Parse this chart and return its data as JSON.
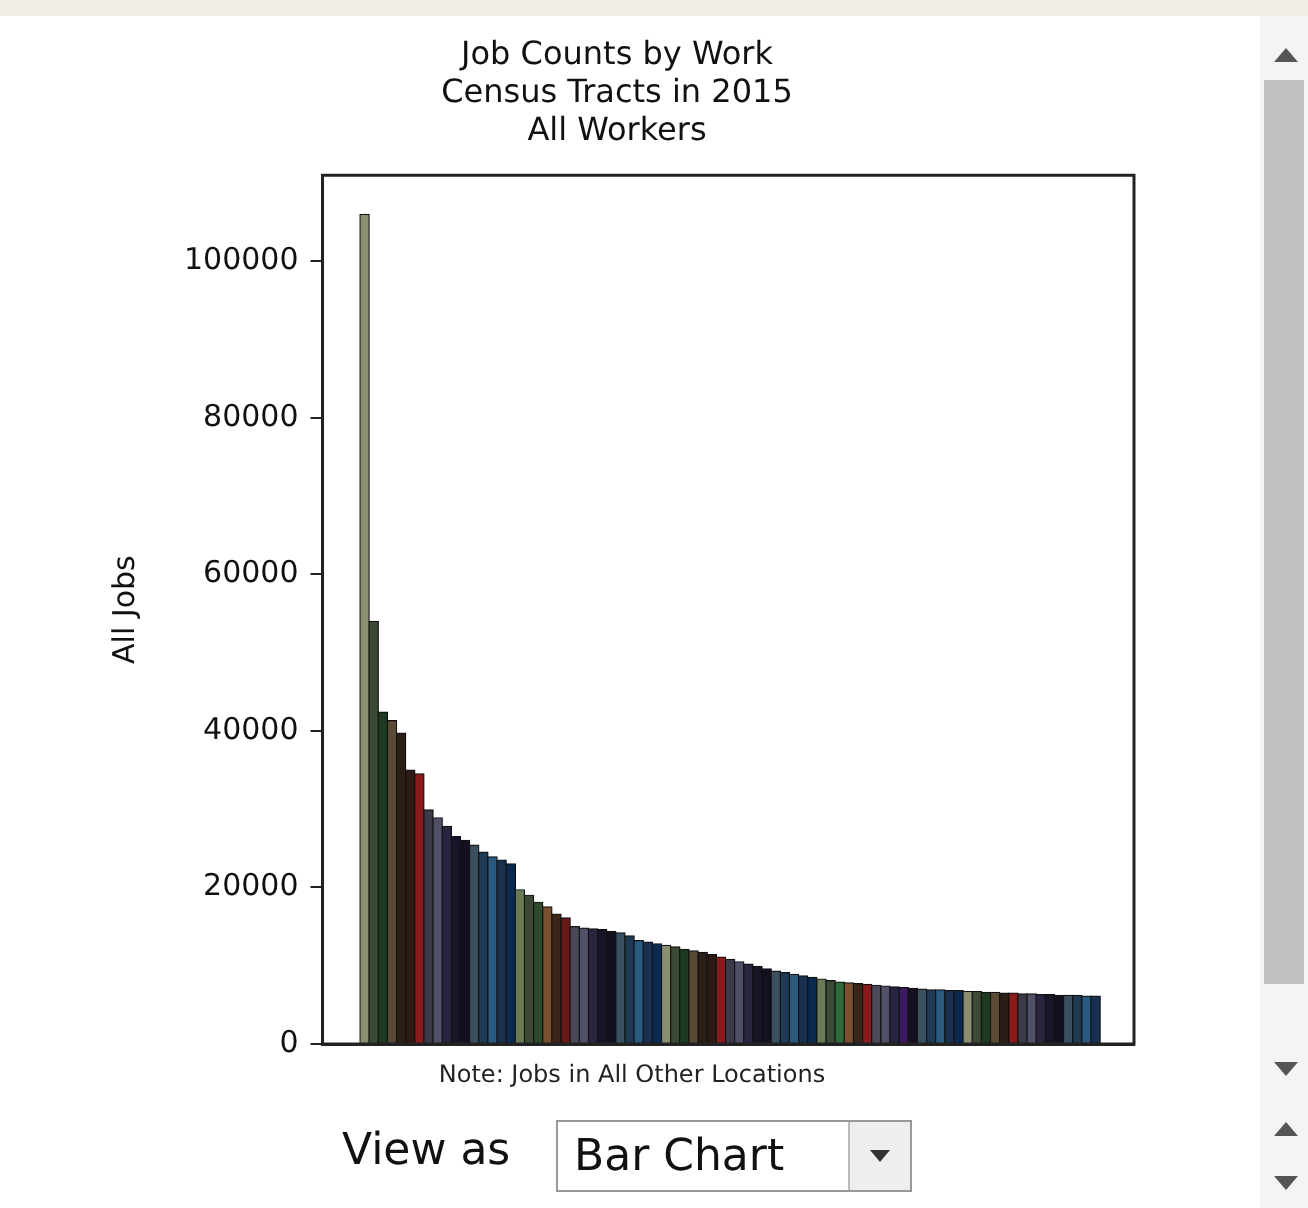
{
  "chart_data": {
    "type": "bar",
    "title": [
      "Job Counts by Work",
      "Census Tracts in 2015",
      "All Workers"
    ],
    "ylabel": "All Jobs",
    "categories": [
      null,
      null,
      null,
      null,
      null,
      null,
      null,
      null,
      null,
      null,
      null,
      null,
      null,
      null,
      null,
      null,
      null,
      null,
      null,
      null,
      null,
      null,
      null,
      null,
      null,
      null,
      null,
      null,
      null,
      null,
      null,
      null,
      null,
      null,
      null,
      null,
      null,
      null,
      null,
      null,
      null,
      null,
      null,
      null,
      null,
      null,
      null,
      null,
      null,
      null,
      null,
      null,
      null,
      null,
      null,
      null,
      null,
      null,
      null,
      null,
      null,
      null,
      null,
      null,
      null,
      null,
      null,
      null,
      null,
      null,
      null,
      null,
      null,
      null,
      null,
      null,
      null,
      null,
      null,
      null,
      null
    ],
    "values": [
      106000,
      54000,
      42400,
      41300,
      39700,
      35000,
      34500,
      29900,
      28900,
      27800,
      26500,
      26000,
      25400,
      24500,
      23900,
      23500,
      23000,
      19700,
      19000,
      18100,
      17500,
      16600,
      16100,
      15000,
      14800,
      14700,
      14600,
      14400,
      14200,
      13800,
      13200,
      13000,
      12800,
      12600,
      12400,
      12100,
      11900,
      11700,
      11400,
      11100,
      10800,
      10500,
      10200,
      9900,
      9600,
      9300,
      9100,
      8900,
      8700,
      8500,
      8300,
      8100,
      7900,
      7800,
      7700,
      7600,
      7500,
      7400,
      7300,
      7200,
      7100,
      7000,
      6900,
      6900,
      6800,
      6800,
      6700,
      6700,
      6600,
      6600,
      6500,
      6500,
      6400,
      6400,
      6300,
      6300,
      6200,
      6200,
      6200,
      6100,
      6100
    ],
    "colors": [
      "#8a8f70",
      "#3c4a35",
      "#1e3a20",
      "#5a4a35",
      "#2b1e16",
      "#2e1a14",
      "#8b1a1a",
      "#3a3a48",
      "#505068",
      "#2a2440",
      "#1a1428",
      "#151020",
      "#3a5060",
      "#1f3a55",
      "#2a5a80",
      "#1a3050",
      "#0a2a50",
      "#6a7a55",
      "#3c4a35",
      "#2e4a2a",
      "#7a5030",
      "#3a2418",
      "#6a1818",
      "#4a4a5a",
      "#505068",
      "#2a2440",
      "#1a1428",
      "#151020",
      "#3a5060",
      "#1f3a55",
      "#2a5a80",
      "#1a3050",
      "#0a2a50",
      "#8a8f70",
      "#3c4a35",
      "#1e3a20",
      "#5a4a35",
      "#2b1e16",
      "#2e1a14",
      "#8b1a1a",
      "#3a3a48",
      "#505068",
      "#2a2440",
      "#1a1428",
      "#151020",
      "#3a5060",
      "#1f3a55",
      "#2a5a80",
      "#1a3050",
      "#0a2a50",
      "#6a7a55",
      "#3c4a35",
      "#2e6a3a",
      "#7a5030",
      "#3a2418",
      "#8b1a1a",
      "#4a4a5a",
      "#505068",
      "#2a2440",
      "#3a1a60",
      "#151020",
      "#3a5060",
      "#1f3a55",
      "#2a5a80",
      "#1a3050",
      "#0a2a50",
      "#8a8f70",
      "#3c4a35",
      "#1e3a20",
      "#5a4a35",
      "#2b1e16",
      "#8b1a1a",
      "#3a3a48",
      "#505068",
      "#2a2440",
      "#1a1428",
      "#151020",
      "#3a5060",
      "#1f3a55",
      "#2a5a80",
      "#1a3050"
    ],
    "ylim": [
      0,
      111000
    ],
    "yticks": [
      0,
      20000,
      40000,
      60000,
      80000,
      100000
    ],
    "grid": false,
    "legend": false,
    "annotations": [
      "Note: Jobs in All Other Locations",
      "View as",
      "Bar Chart"
    ]
  }
}
